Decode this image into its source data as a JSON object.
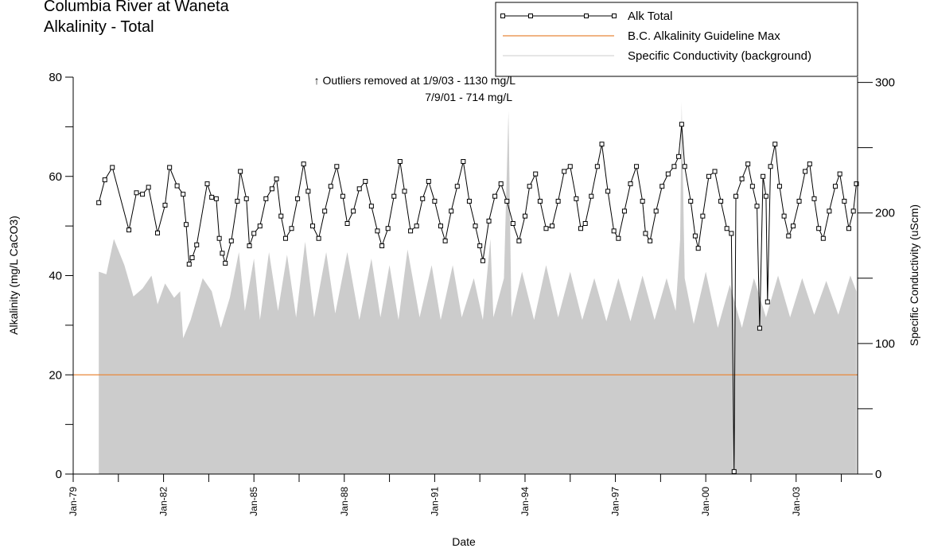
{
  "chart_data": {
    "type": "line",
    "title": [
      "Columbia River at Waneta",
      "Alkalinity - Total"
    ],
    "x_label": "Date",
    "y_label": "Alkalinity (mg/L CaCO3)",
    "y2_label": "Specific Conductivity (uScm)",
    "annotations": [
      "↑ Outliers removed at 1/9/03 - 1130 mg/L",
      "7/9/01 - 714 mg/L"
    ],
    "xlim": [
      1979,
      2005.04
    ],
    "xticks": [
      {
        "value": 1979,
        "label": "Jan-79"
      },
      {
        "value": 1982,
        "label": "Jan-82"
      },
      {
        "value": 1985,
        "label": "Jan-85"
      },
      {
        "value": 1988,
        "label": "Jan-88"
      },
      {
        "value": 1991,
        "label": "Jan-91"
      },
      {
        "value": 1994,
        "label": "Jan-94"
      },
      {
        "value": 1997,
        "label": "Jan-97"
      },
      {
        "value": 2000,
        "label": "Jan-00"
      },
      {
        "value": 2003,
        "label": "Jan-03"
      }
    ],
    "xminorticks": [
      1980.5,
      1983.5,
      1986.5,
      1989.5,
      1992.5,
      1995.5,
      1998.5,
      2001.5,
      2004.5
    ],
    "ylim": [
      0,
      80
    ],
    "yticks": [
      0,
      20,
      40,
      60,
      80
    ],
    "yminorticks": [
      10,
      30,
      50,
      70
    ],
    "y2lim": [
      0,
      304
    ],
    "y2ticks": [
      0,
      100,
      200,
      300
    ],
    "y2minorticks": [
      50,
      150,
      250
    ],
    "legend": "top-right",
    "guideline": {
      "name": "B.C. Alkalinity Guideline Max",
      "color": "#e8873a",
      "value": 20
    },
    "series": [
      {
        "name": "Alk Total",
        "color": "#000000",
        "marker": "square",
        "x": [
          1979.85,
          1980.05,
          1980.3,
          1980.85,
          1981.1,
          1981.3,
          1981.5,
          1981.8,
          1982.05,
          1982.2,
          1982.45,
          1982.65,
          1982.75,
          1982.85,
          1982.95,
          1983.1,
          1983.45,
          1983.6,
          1983.75,
          1983.85,
          1983.95,
          1984.05,
          1984.25,
          1984.45,
          1984.55,
          1984.75,
          1984.85,
          1985.0,
          1985.2,
          1985.4,
          1985.6,
          1985.75,
          1985.9,
          1986.05,
          1986.25,
          1986.45,
          1986.65,
          1986.8,
          1986.95,
          1987.15,
          1987.35,
          1987.55,
          1987.75,
          1987.95,
          1988.1,
          1988.3,
          1988.5,
          1988.7,
          1988.9,
          1989.1,
          1989.25,
          1989.45,
          1989.65,
          1989.85,
          1990.0,
          1990.2,
          1990.4,
          1990.6,
          1990.8,
          1991.0,
          1991.2,
          1991.35,
          1991.55,
          1991.75,
          1991.95,
          1992.15,
          1992.35,
          1992.5,
          1992.6,
          1992.8,
          1993.0,
          1993.2,
          1993.4,
          1993.6,
          1993.8,
          1994.0,
          1994.15,
          1994.35,
          1994.5,
          1994.7,
          1994.9,
          1995.1,
          1995.3,
          1995.5,
          1995.7,
          1995.85,
          1996.0,
          1996.2,
          1996.4,
          1996.55,
          1996.75,
          1996.95,
          1997.1,
          1997.3,
          1997.5,
          1997.7,
          1997.9,
          1998.0,
          1998.15,
          1998.35,
          1998.55,
          1998.75,
          1998.95,
          1999.1,
          1999.2,
          1999.3,
          1999.5,
          1999.65,
          1999.75,
          1999.9,
          2000.1,
          2000.3,
          2000.5,
          2000.7,
          2000.85,
          2000.94,
          2001.0,
          2001.2,
          2001.4,
          2001.55,
          2001.7,
          2001.79,
          2001.9,
          2002.0,
          2002.05,
          2002.15,
          2002.3,
          2002.45,
          2002.6,
          2002.75,
          2002.9,
          2003.1,
          2003.3,
          2003.45,
          2003.6,
          2003.75,
          2003.9,
          2004.1,
          2004.3,
          2004.45,
          2004.6,
          2004.75,
          2004.9,
          2005.0
        ],
        "values": [
          54.7,
          59.3,
          61.8,
          49.2,
          56.7,
          56.4,
          57.8,
          48.6,
          54.2,
          61.8,
          58.1,
          56.4,
          50.3,
          42.3,
          43.6,
          46.2,
          58.5,
          55.8,
          55.5,
          47.5,
          44.5,
          42.5,
          47.0,
          55.0,
          61.0,
          55.5,
          46.0,
          48.5,
          50.0,
          55.5,
          57.5,
          59.5,
          52.0,
          47.5,
          49.5,
          55.5,
          62.5,
          57.0,
          50.0,
          47.5,
          53.0,
          58.0,
          62.0,
          56.0,
          50.5,
          53.0,
          57.5,
          59.0,
          54.0,
          49.0,
          46.0,
          49.5,
          56.0,
          63.0,
          57.0,
          49.0,
          50.0,
          55.5,
          59.0,
          55.0,
          50.0,
          47.0,
          53.0,
          58.0,
          63.0,
          55.0,
          50.0,
          46.0,
          43.0,
          51.0,
          56.0,
          58.5,
          55.0,
          50.5,
          47.0,
          52.0,
          58.0,
          60.5,
          55.0,
          49.5,
          50.0,
          55.0,
          61.0,
          62.0,
          55.5,
          49.5,
          50.5,
          56.0,
          62.0,
          66.5,
          57.0,
          49.0,
          47.5,
          53.0,
          58.5,
          62.0,
          55.0,
          48.5,
          47.0,
          53.0,
          58.0,
          60.5,
          62.0,
          64.0,
          70.5,
          62.0,
          55.0,
          48.0,
          45.5,
          52.0,
          60.0,
          61.0,
          55.0,
          49.5,
          48.5,
          0.5,
          56.0,
          59.5,
          62.5,
          58.0,
          54.0,
          29.4,
          60.0,
          56.0,
          34.7,
          62.0,
          66.5,
          58.0,
          52.0,
          48.0,
          50.0,
          55.0,
          61.0,
          62.5,
          55.5,
          49.5,
          47.5,
          53.0,
          58.0,
          60.5,
          55.0,
          49.5,
          53.0,
          58.5
        ]
      },
      {
        "name": "Specific Conductivity (background)",
        "color": "#cccccc",
        "axis": "y2",
        "fill": "area",
        "x": [
          1979.85,
          1980.1,
          1980.35,
          1980.7,
          1981.0,
          1981.3,
          1981.6,
          1981.8,
          1982.05,
          1982.35,
          1982.55,
          1982.65,
          1982.9,
          1983.3,
          1983.6,
          1983.9,
          1984.2,
          1984.5,
          1984.7,
          1985.0,
          1985.2,
          1985.5,
          1985.8,
          1986.1,
          1986.4,
          1986.7,
          1987.0,
          1987.4,
          1987.7,
          1988.1,
          1988.5,
          1988.9,
          1989.2,
          1989.5,
          1989.8,
          1990.1,
          1990.5,
          1990.9,
          1991.2,
          1991.6,
          1991.9,
          1992.3,
          1992.6,
          1992.85,
          1992.95,
          1993.3,
          1993.45,
          1993.55,
          1993.9,
          1994.3,
          1994.7,
          1995.1,
          1995.5,
          1995.9,
          1996.3,
          1996.7,
          1997.1,
          1997.5,
          1997.9,
          1998.3,
          1998.7,
          1999.0,
          1999.15,
          1999.2,
          1999.3,
          1999.6,
          2000.0,
          2000.4,
          2000.8,
          2001.2,
          2001.6,
          2002.0,
          2002.4,
          2002.8,
          2003.2,
          2003.6,
          2004.0,
          2004.4,
          2004.8,
          2005.0
        ],
        "values": [
          155,
          153,
          180,
          160,
          136,
          142,
          152,
          130,
          146,
          135,
          140,
          104,
          118,
          150,
          140,
          112,
          135,
          170,
          125,
          165,
          118,
          170,
          125,
          168,
          120,
          178,
          120,
          170,
          123,
          170,
          118,
          165,
          120,
          160,
          118,
          172,
          120,
          160,
          118,
          160,
          120,
          150,
          118,
          180,
          120,
          150,
          278,
          120,
          155,
          118,
          160,
          120,
          155,
          118,
          150,
          117,
          150,
          117,
          152,
          118,
          150,
          125,
          180,
          285,
          150,
          115,
          155,
          112,
          145,
          112,
          150,
          120,
          152,
          120,
          150,
          122,
          148,
          122,
          152,
          140
        ]
      }
    ]
  }
}
